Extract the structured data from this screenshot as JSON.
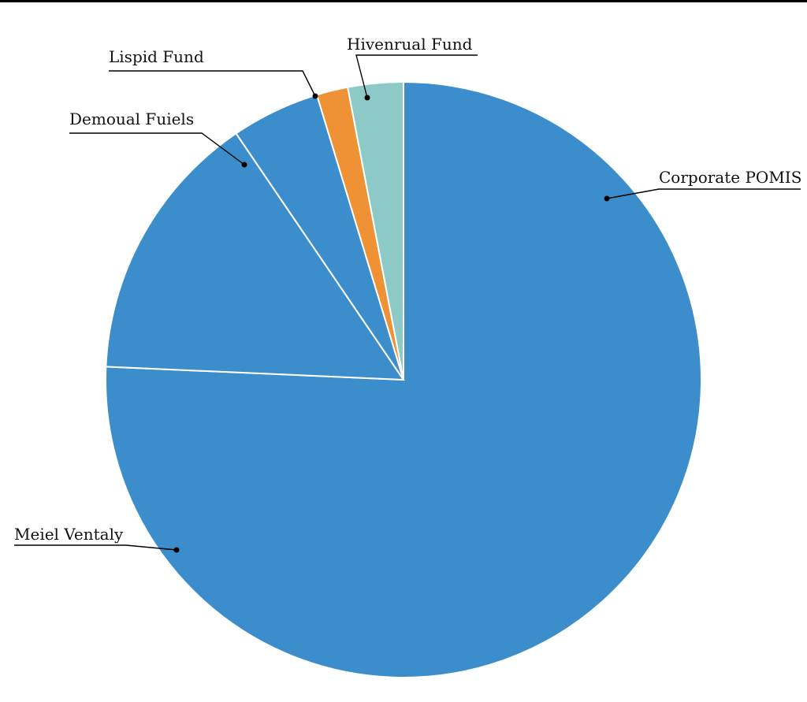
{
  "chart_data": {
    "type": "pie",
    "title": "",
    "start_angle_deg": 0,
    "direction": "clockwise",
    "slices": [
      {
        "label": "Corporate POMIS",
        "value": 75.7,
        "color": "#3c8dcb"
      },
      {
        "label": "Meiel Ventaly",
        "value": 14.8,
        "color": "#3c8dcb"
      },
      {
        "label": "Demoual Fuiels",
        "value": 4.8,
        "color": "#3c8dcb"
      },
      {
        "label": "Lispid Fund",
        "value": 1.7,
        "color": "#ee9235"
      },
      {
        "label": "Hivenrual Fund",
        "value": 3.0,
        "color": "#8cc9c7"
      }
    ]
  }
}
